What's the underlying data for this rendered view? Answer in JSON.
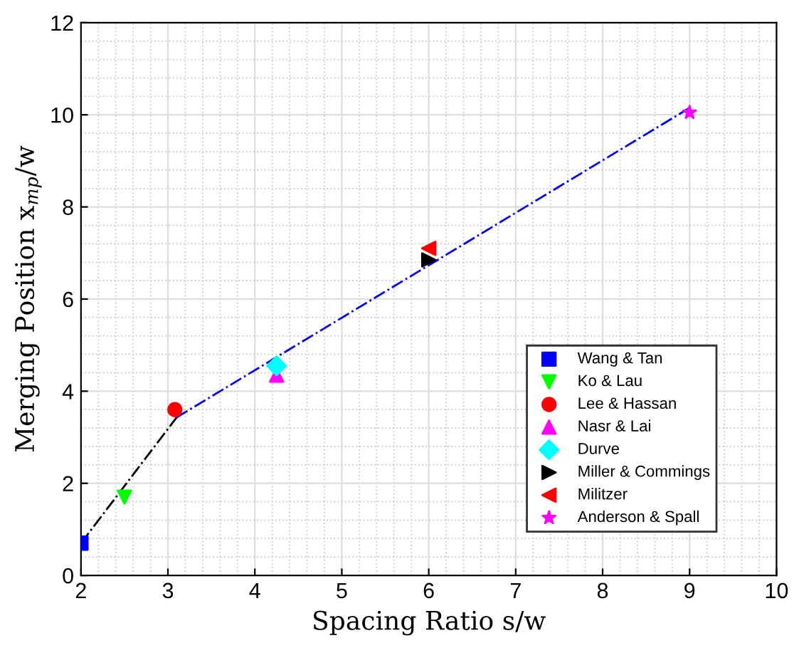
{
  "chart_data": {
    "type": "scatter",
    "xlabel": "Spacing Ratio s/w",
    "ylabel": "Merging Position x$_{mp}$/w",
    "xlim": [
      2,
      10
    ],
    "ylim": [
      0,
      12
    ],
    "xticks": [
      2,
      3,
      4,
      5,
      6,
      7,
      8,
      9,
      10
    ],
    "yticks": [
      0,
      2,
      4,
      6,
      8,
      10,
      12
    ],
    "grid": true,
    "legend": "bottom right",
    "series": [
      {
        "type": "line",
        "color": "#000000",
        "line_style": "dashdot",
        "marker": "none",
        "x": [
          2,
          3.1
        ],
        "values": [
          0.7,
          3.43
        ]
      },
      {
        "type": "line",
        "color": "#0000ff",
        "line_style": "dashdot",
        "marker": "none",
        "x": [
          3.1,
          9
        ],
        "values": [
          3.43,
          10.15
        ]
      },
      {
        "name": "Wang & Tan",
        "color": "#0000ff",
        "marker": "square",
        "x": [
          2
        ],
        "values": [
          0.7
        ]
      },
      {
        "name": "Ko & Lau",
        "color": "#00ff00",
        "marker": "triangle-down",
        "x": [
          2.5
        ],
        "values": [
          1.7
        ]
      },
      {
        "name": "Lee & Hassan",
        "color": "#ff0000",
        "marker": "circle",
        "x": [
          3.08
        ],
        "values": [
          3.6
        ]
      },
      {
        "name": "Nasr & Lai",
        "color": "#ff00ff",
        "marker": "triangle",
        "x": [
          4.25
        ],
        "values": [
          4.35
        ]
      },
      {
        "name": "Durve",
        "color": "#00ffff",
        "marker": "diamond",
        "x": [
          4.25
        ],
        "values": [
          4.55
        ]
      },
      {
        "name": "Miller & Commings",
        "color": "#000000",
        "marker": "triangle-right",
        "x": [
          6
        ],
        "values": [
          6.85
        ]
      },
      {
        "name": "Militzer",
        "color": "#ff0000",
        "marker": "triangle-left",
        "x": [
          6
        ],
        "values": [
          7.1
        ]
      },
      {
        "name": "Anderson & Spall",
        "color": "#ff00ff",
        "marker": "star",
        "x": [
          9
        ],
        "values": [
          10.05
        ]
      }
    ]
  }
}
